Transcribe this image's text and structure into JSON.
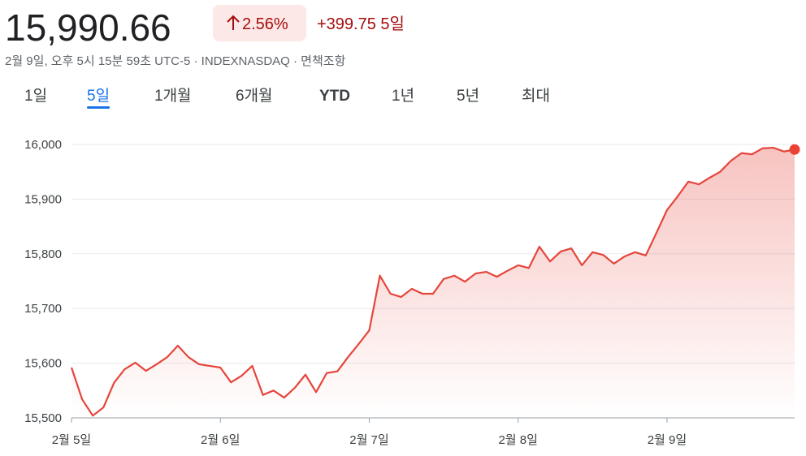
{
  "header": {
    "price": "15,990.66",
    "change_percent": "2.56%",
    "change": "+399.75 5일",
    "subtitle": "2월 9일, 오후 5시 15분 59초 UTC-5 · INDEXNASDAQ · 면책조항",
    "tabs": [
      "1일",
      "5일",
      "1개월",
      "6개월",
      "YTD",
      "1년",
      "5년",
      "최대"
    ],
    "selected_tab": 1
  },
  "chart_data": {
    "type": "area",
    "color": "#e5453b",
    "values": [
      15592,
      15534,
      15504,
      15519,
      15564,
      15589,
      15601,
      15586,
      15598,
      15611,
      15632,
      15611,
      15598,
      15595,
      15592,
      15565,
      15577,
      15595,
      15542,
      15550,
      15537,
      15555,
      15579,
      15547,
      15582,
      15585,
      15611,
      15635,
      15660,
      15760,
      15727,
      15721,
      15736,
      15727,
      15727,
      15754,
      15760,
      15749,
      15764,
      15767,
      15758,
      15769,
      15779,
      15774,
      15813,
      15786,
      15804,
      15810,
      15779,
      15803,
      15798,
      15782,
      15795,
      15803,
      15797,
      15838,
      15880,
      15905,
      15932,
      15927,
      15939,
      15950,
      15970,
      15984,
      15982,
      15993,
      15994,
      15987,
      15990.66
    ],
    "xlim": [
      0,
      68
    ],
    "xticks": [
      {
        "value": 0,
        "label": "2월 5일"
      },
      {
        "value": 14,
        "label": "2월 6일"
      },
      {
        "value": 28,
        "label": "2월 7일"
      },
      {
        "value": 42,
        "label": "2월 8일"
      },
      {
        "value": 56,
        "label": "2월 9일"
      }
    ],
    "ylim": [
      15500,
      16000
    ],
    "yticks": [
      {
        "value": 15500,
        "label": "15,500"
      },
      {
        "value": 15600,
        "label": "15,600"
      },
      {
        "value": 15700,
        "label": "15,700"
      },
      {
        "value": 15800,
        "label": "15,800"
      },
      {
        "value": 15900,
        "label": "15,900"
      },
      {
        "value": 16000,
        "label": "16,000"
      }
    ],
    "grid": true
  }
}
